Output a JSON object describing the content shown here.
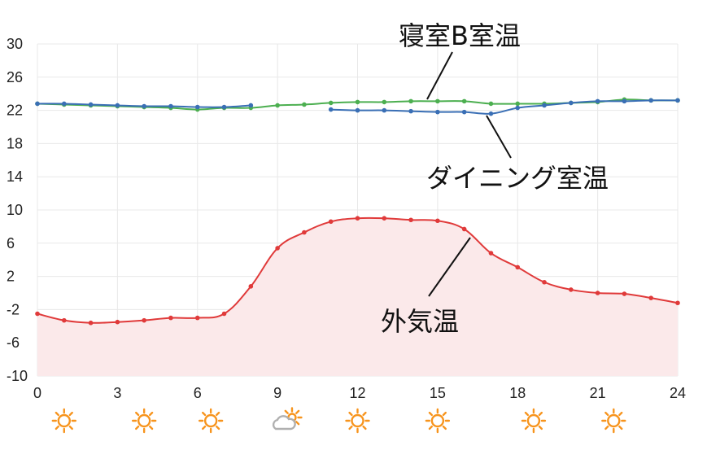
{
  "chart_data": {
    "type": "line",
    "title": "",
    "xlabel": "",
    "ylabel": "",
    "xlim": [
      0,
      24
    ],
    "ylim": [
      -10,
      30
    ],
    "x_ticks": [
      0,
      3,
      6,
      9,
      12,
      15,
      18,
      21,
      24
    ],
    "x_tick_labels": [
      "0",
      "3",
      "6",
      "9",
      "12",
      "15",
      "18",
      "21",
      "24"
    ],
    "y_ticks": [
      30,
      26,
      22,
      18,
      14,
      10,
      6,
      2,
      -2,
      -6,
      -10
    ],
    "y_tick_labels": [
      "30",
      "26",
      "22",
      "18",
      "14",
      "10",
      "6",
      "2",
      "-2",
      "-6",
      "-10"
    ],
    "grid": true,
    "series": [
      {
        "name": "寝室B室温",
        "color": "#4caf50",
        "x": [
          0,
          1,
          2,
          3,
          4,
          5,
          6,
          7,
          8,
          9,
          10,
          11,
          12,
          13,
          14,
          15,
          16,
          17,
          18,
          19,
          20,
          21,
          22,
          23,
          24
        ],
        "values": [
          22.8,
          22.7,
          22.6,
          22.5,
          22.4,
          22.3,
          22.1,
          22.3,
          22.3,
          22.6,
          22.7,
          22.9,
          23.0,
          23.0,
          23.1,
          23.1,
          23.1,
          22.8,
          22.8,
          22.8,
          22.9,
          23.0,
          23.3,
          23.2,
          23.2
        ]
      },
      {
        "name": "ダイニング室温",
        "color": "#3a6fb5",
        "x": [
          0,
          1,
          2,
          3,
          4,
          5,
          6,
          7,
          8,
          11,
          12,
          13,
          14,
          15,
          16,
          17,
          18,
          19,
          20,
          21,
          22,
          23,
          24
        ],
        "values": [
          22.8,
          22.8,
          22.7,
          22.6,
          22.5,
          22.5,
          22.4,
          22.4,
          22.6,
          22.1,
          22.0,
          22.0,
          21.9,
          21.8,
          21.8,
          21.6,
          22.3,
          22.6,
          22.9,
          23.1,
          23.1,
          23.2,
          23.2
        ]
      },
      {
        "name": "外気温",
        "color": "#e03a3a",
        "fill": "#fbe9ea",
        "x": [
          0,
          1,
          2,
          3,
          4,
          5,
          6,
          7,
          8,
          9,
          10,
          11,
          12,
          13,
          14,
          15,
          16,
          17,
          18,
          19,
          20,
          21,
          22,
          23,
          24
        ],
        "values": [
          -2.5,
          -3.3,
          -3.6,
          -3.5,
          -3.3,
          -3.0,
          -3.0,
          -2.5,
          0.8,
          5.4,
          7.3,
          8.6,
          9.0,
          9.0,
          8.8,
          8.7,
          7.7,
          4.8,
          3.1,
          1.3,
          0.4,
          0.0,
          -0.1,
          -0.6,
          -1.2
        ]
      }
    ],
    "annotations": [
      "寝室B室温",
      "ダイニング室温",
      "外気温"
    ],
    "weather": {
      "x": [
        1,
        4,
        6.5,
        9.3,
        12,
        15,
        18.6,
        21.6
      ],
      "icons": [
        "sun-icon",
        "sun-icon",
        "sun-icon",
        "partly-cloudy-icon",
        "sun-icon",
        "sun-icon",
        "sun-icon",
        "sun-icon"
      ],
      "sun_color": "#f7941d",
      "cloud_color": "#b0b0b0"
    }
  }
}
